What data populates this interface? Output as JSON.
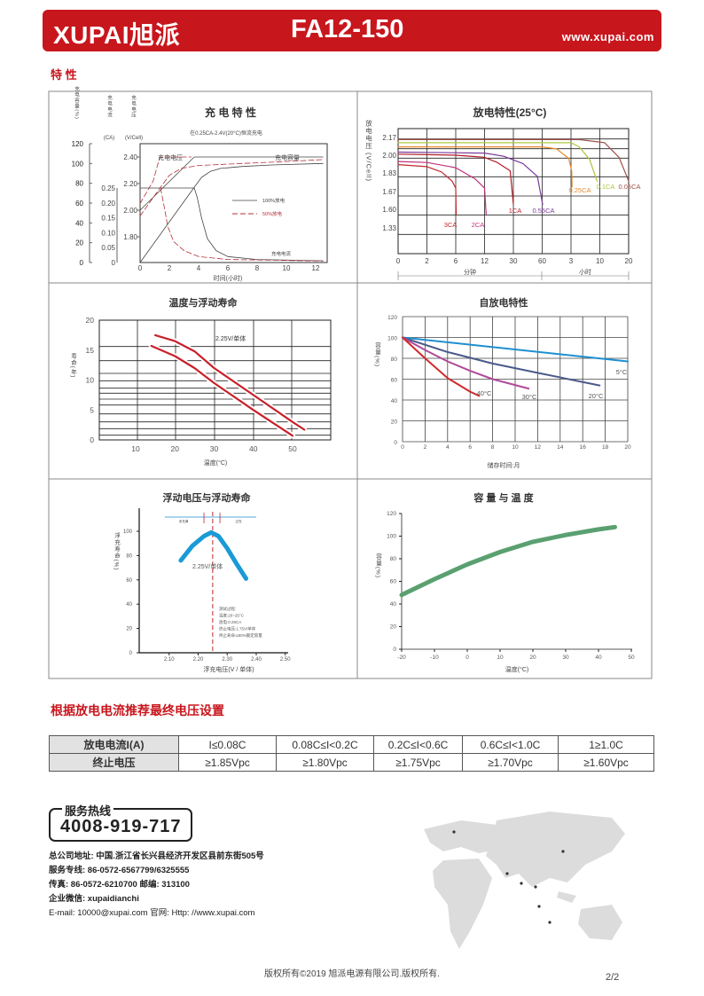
{
  "header": {
    "brand": "XUPAI旭派",
    "model": "FA12-150",
    "website": "www.xupai.com",
    "brand_color": "#c8161d"
  },
  "section_characteristics": "特 性",
  "chart_data": [
    {
      "type": "line",
      "title": "充 电 特 性",
      "subtitle": "在0.25CA-2.4V(20°C)恒流充电",
      "xlabel": "时间(小时)",
      "x_ticks": [
        "0",
        "2",
        "4",
        "6",
        "8",
        "10",
        "12"
      ],
      "axes": {
        "capacity": {
          "label": "充电容量(%)",
          "ticks": [
            "0",
            "20",
            "40",
            "60",
            "80",
            "100",
            "120"
          ]
        },
        "current": {
          "label": "充电电流",
          "unit": "(CA)",
          "ticks": [
            "0",
            "0.05",
            "0.10",
            "0.15",
            "0.20",
            "0.25"
          ]
        },
        "voltage": {
          "label": "充电电压",
          "unit": "(V/Cell)",
          "ticks": [
            "1.80",
            "2.00",
            "2.20",
            "2.40"
          ]
        }
      },
      "legend": [
        "100%放电",
        "50%放电"
      ],
      "annotations": [
        "充电电压",
        "充电容量",
        "充电电流"
      ],
      "series": [
        {
          "axis": "voltage",
          "legend": 0,
          "points": [
            [
              0,
              2.0
            ],
            [
              3.7,
              2.4
            ],
            [
              12.5,
              2.4
            ]
          ]
        },
        {
          "axis": "voltage",
          "legend": 1,
          "points": [
            [
              0,
              2.05
            ],
            [
              0.9,
              2.22
            ],
            [
              1.3,
              2.38
            ],
            [
              1.4,
              2.4
            ],
            [
              3.5,
              2.4
            ]
          ]
        },
        {
          "axis": "current",
          "legend": 0,
          "points": [
            [
              0,
              0.25
            ],
            [
              3.7,
              0.25
            ],
            [
              3.9,
              0.22
            ],
            [
              4.2,
              0.15
            ],
            [
              4.6,
              0.08
            ],
            [
              5.2,
              0.04
            ],
            [
              6,
              0.02
            ],
            [
              8,
              0.01
            ],
            [
              12.5,
              0.006
            ]
          ]
        },
        {
          "axis": "current",
          "legend": 1,
          "points": [
            [
              1.4,
              0.25
            ],
            [
              1.6,
              0.2
            ],
            [
              1.9,
              0.12
            ],
            [
              2.3,
              0.07
            ],
            [
              3,
              0.04
            ],
            [
              4,
              0.02
            ],
            [
              6,
              0.01
            ],
            [
              12.5,
              0.005
            ]
          ]
        },
        {
          "axis": "capacity",
          "legend": 0,
          "points": [
            [
              0,
              0
            ],
            [
              3.7,
              76
            ],
            [
              4.2,
              86
            ],
            [
              4.8,
              92
            ],
            [
              5.5,
              95
            ],
            [
              7,
              97
            ],
            [
              9,
              98.5
            ],
            [
              12.5,
              100
            ]
          ]
        },
        {
          "axis": "capacity",
          "legend": 1,
          "points": [
            [
              0,
              47
            ],
            [
              1.4,
              76
            ],
            [
              2,
              88
            ],
            [
              2.8,
              95
            ],
            [
              4,
              98
            ],
            [
              7,
              100
            ],
            [
              10,
              102
            ],
            [
              12.5,
              104
            ]
          ]
        }
      ]
    },
    {
      "type": "line",
      "title": "放电特性(25°C)",
      "ylabel": "放电电压 (V/Cell)",
      "x_ticks": [
        "0",
        "2",
        "6",
        "12",
        "30",
        "60",
        "3",
        "10",
        "20"
      ],
      "x_tick_minutes": [
        0,
        2,
        6,
        12,
        30,
        60,
        180,
        600,
        1200
      ],
      "x_groups": [
        "分钟",
        "小时"
      ],
      "y_ticks": [
        "2.17",
        "2.00",
        "1.83",
        "1.67",
        "1.60",
        "1.33"
      ],
      "series": [
        {
          "name": "3CA",
          "color": "#c0282e",
          "points": [
            [
              0,
              1.91
            ],
            [
              2,
              1.89
            ],
            [
              4,
              1.84
            ],
            [
              5.5,
              1.76
            ],
            [
              6,
              1.7
            ],
            [
              6.1,
              1.53
            ]
          ]
        },
        {
          "name": "2CA",
          "color": "#c2307a",
          "points": [
            [
              0,
              1.94
            ],
            [
              2,
              1.93
            ],
            [
              6,
              1.88
            ],
            [
              10,
              1.78
            ],
            [
              12,
              1.7
            ],
            [
              13,
              1.53
            ]
          ]
        },
        {
          "name": "1CA",
          "color": "#b01e28",
          "points": [
            [
              0,
              2.01
            ],
            [
              6,
              2.0
            ],
            [
              12,
              1.98
            ],
            [
              20,
              1.93
            ],
            [
              28,
              1.85
            ],
            [
              30,
              1.62
            ]
          ]
        },
        {
          "name": "0.55CA",
          "color": "#7a3a9a",
          "points": [
            [
              0,
              2.03
            ],
            [
              12,
              2.02
            ],
            [
              24,
              1.99
            ],
            [
              40,
              1.92
            ],
            [
              55,
              1.8
            ],
            [
              62,
              1.62
            ]
          ]
        },
        {
          "name": "0.25CA",
          "color": "#e88a2a",
          "points": [
            [
              0,
              2.08
            ],
            [
              60,
              2.08
            ],
            [
              120,
              2.06
            ],
            [
              170,
              1.97
            ],
            [
              190,
              1.85
            ],
            [
              195,
              1.71
            ]
          ]
        },
        {
          "name": "0.1CA",
          "color": "#a8c83a",
          "points": [
            [
              0,
              2.12
            ],
            [
              180,
              2.12
            ],
            [
              300,
              2.08
            ],
            [
              450,
              1.96
            ],
            [
              560,
              1.76
            ]
          ]
        },
        {
          "name": "0.05CA",
          "color": "#a0524a",
          "points": [
            [
              0,
              2.15
            ],
            [
              300,
              2.15
            ],
            [
              700,
              2.12
            ],
            [
              1000,
              1.98
            ],
            [
              1200,
              1.76
            ]
          ]
        }
      ]
    },
    {
      "type": "line",
      "title": "温度与浮动寿命",
      "xlabel": "温度(°C)",
      "ylabel": "寿命(年)",
      "x_ticks": [
        "10",
        "20",
        "30",
        "40",
        "50"
      ],
      "y_ticks": [
        "0",
        "5",
        "10",
        "15",
        "20"
      ],
      "annotation": "2.25V/单体",
      "color": "#c8202a",
      "series": [
        {
          "points": [
            [
              15,
              17.5
            ],
            [
              20,
              16.5
            ],
            [
              25,
              14.8
            ],
            [
              30,
              12
            ],
            [
              40,
              7.5
            ],
            [
              50,
              3
            ],
            [
              53,
              1.7
            ]
          ]
        },
        {
          "points": [
            [
              14,
              15.7
            ],
            [
              20,
              14
            ],
            [
              25,
              12
            ],
            [
              30,
              9.5
            ],
            [
              40,
              5
            ],
            [
              50,
              0.7
            ]
          ]
        }
      ]
    },
    {
      "type": "line",
      "title": "自放电特性",
      "xlabel": "储存时间:月",
      "ylabel": "容量(%)",
      "x_ticks": [
        "0",
        "2",
        "4",
        "6",
        "8",
        "10",
        "12",
        "14",
        "16",
        "18",
        "20"
      ],
      "y_ticks": [
        "0",
        "20",
        "40",
        "60",
        "80",
        "100",
        "120"
      ],
      "series": [
        {
          "name": "5°C",
          "color": "#1e8fd0",
          "points": [
            [
              0,
              100
            ],
            [
              20,
              77
            ]
          ]
        },
        {
          "name": "20°C",
          "color": "#4a5a8a",
          "points": [
            [
              0,
              100
            ],
            [
              4,
              86
            ],
            [
              8,
              75
            ],
            [
              12,
              66
            ],
            [
              17.5,
              54
            ]
          ]
        },
        {
          "name": "30°C",
          "color": "#b04a9a",
          "points": [
            [
              0,
              100
            ],
            [
              2,
              88
            ],
            [
              4,
              77
            ],
            [
              6,
              68
            ],
            [
              8,
              60
            ],
            [
              11.2,
              51
            ]
          ]
        },
        {
          "name": "40°C",
          "color": "#d02a2a",
          "points": [
            [
              0,
              100
            ],
            [
              2,
              80
            ],
            [
              4,
              61
            ],
            [
              6,
              48
            ],
            [
              6.8,
              44
            ]
          ]
        }
      ]
    },
    {
      "type": "line",
      "title": "浮动电压与浮动寿命",
      "xlabel": "浮充电压(V / 单体)",
      "ylabel": "浮充寿命(%)",
      "x_ticks": [
        "2.10",
        "2.20",
        "2.30",
        "2.40",
        "2.50"
      ],
      "y_ticks": [
        "0",
        "20",
        "40",
        "60",
        "80",
        "100"
      ],
      "color": "#1a9ad6",
      "marker_voltage": 2.25,
      "range_labels": [
        "未充满",
        "过充"
      ],
      "annotation": "2.25V/单体",
      "notes": [
        "测试过程:",
        "温度:20~25°C",
        "放电:0.25CA",
        "终止电压:1.75V/单体",
        "终止寿命:≤60%额定容量"
      ],
      "series": [
        {
          "points": [
            [
              2.14,
              76
            ],
            [
              2.18,
              88
            ],
            [
              2.22,
              96
            ],
            [
              2.245,
              99
            ],
            [
              2.27,
              96
            ],
            [
              2.3,
              86
            ],
            [
              2.33,
              74
            ],
            [
              2.365,
              61
            ]
          ]
        }
      ]
    },
    {
      "type": "line",
      "title": "容 量 与 温 度",
      "xlabel": "温度(°C)",
      "ylabel": "容量(%)",
      "x_ticks": [
        "-20",
        "-10",
        "0",
        "10",
        "20",
        "30",
        "40",
        "50"
      ],
      "y_ticks": [
        "0",
        "20",
        "40",
        "60",
        "80",
        "100",
        "120"
      ],
      "color": "#5aa070",
      "series": [
        {
          "points": [
            [
              -20,
              48
            ],
            [
              -10,
              62
            ],
            [
              0,
              75
            ],
            [
              10,
              86
            ],
            [
              20,
              95
            ],
            [
              30,
              101
            ],
            [
              40,
              106
            ],
            [
              45,
              108
            ]
          ]
        }
      ]
    }
  ],
  "table": {
    "title": "根据放电电流推荐最终电压设置",
    "rows": [
      [
        "放电电流I(A)",
        "I≤0.08C",
        "0.08C≤I<0.2C",
        "0.2C≤I<0.6C",
        "0.6C≤I<1.0C",
        "1≥1.0C"
      ],
      [
        "终止电压",
        "≥1.85Vpc",
        "≥1.80Vpc",
        "≥1.75Vpc",
        "≥1.70Vpc",
        "≥1.60Vpc"
      ]
    ]
  },
  "hotline": {
    "label": "服务热线",
    "number": "4008-919-717"
  },
  "contact": [
    "总公司地址: 中国.浙江省长兴县经济开发区县前东街505号",
    "服务专线: 86-0572-6567799/6325555",
    "传真: 86-0572-6210700 邮编: 313100",
    "企业微信: xupaidianchi",
    "E-mail: 10000@xupai.com  官网: Http: //www.xupai.com"
  ],
  "footer": {
    "copyright": "版权所有©2019 旭派电源有限公司.版权所有.",
    "page": "2/2"
  }
}
